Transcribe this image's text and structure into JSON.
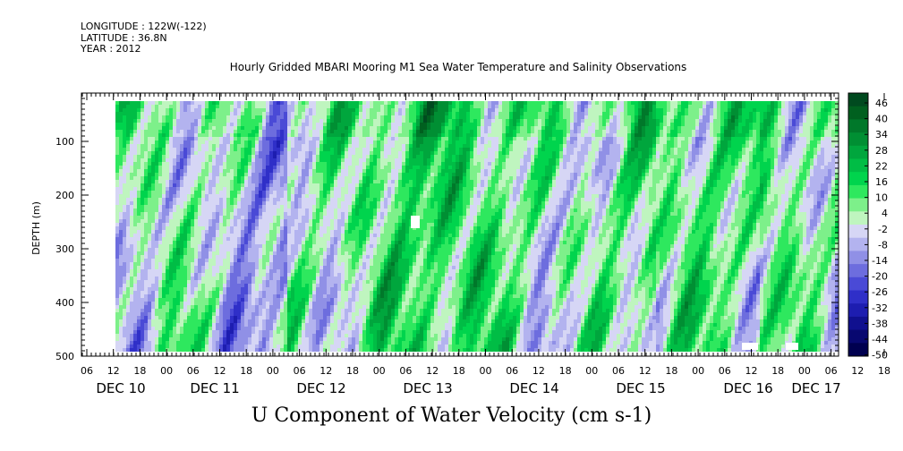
{
  "meta_lines": {
    "longitude": "LONGITUDE : 122W(-122)",
    "latitude": "LATITUDE : 36.8N",
    "year": "YEAR : 2012"
  },
  "chart_data": {
    "type": "heatmap",
    "title": "Hourly Gridded MBARI Mooring M1 Sea Water Temperature and Salinity Observations",
    "xlabel": "U Component of Water Velocity (cm s-1)",
    "ylabel": "DEPTH (m)",
    "ylim": [
      500,
      10
    ],
    "y_ticks": [
      100,
      200,
      300,
      400,
      500
    ],
    "x_hour_labels": [
      "06",
      "12",
      "18",
      "00",
      "06",
      "12",
      "18",
      "00",
      "06",
      "12",
      "18",
      "00",
      "06",
      "12",
      "18",
      "00",
      "06",
      "12",
      "18",
      "00",
      "06",
      "12",
      "18",
      "00",
      "06",
      "12",
      "18",
      "00",
      "06",
      "12",
      "18",
      "00",
      "06"
    ],
    "x_day_labels": [
      "DEC 10",
      "DEC 11",
      "DEC 12",
      "DEC 13",
      "DEC 14",
      "DEC 15",
      "DEC 16",
      "DEC 17"
    ],
    "colorbar": {
      "levels": [
        "46",
        "40",
        "34",
        "28",
        "22",
        "16",
        "10",
        "4",
        "-2",
        "-8",
        "-14",
        "-20",
        "-26",
        "-32",
        "-38",
        "-44",
        "-50"
      ],
      "colors_top_to_bottom": [
        "#004a1f",
        "#00601f",
        "#00782a",
        "#008f33",
        "#00a63d",
        "#00bd45",
        "#00d44d",
        "#2ee85e",
        "#7df08a",
        "#bff5bf",
        "#d6d6f5",
        "#b3b3ef",
        "#9090e6",
        "#6d6dde",
        "#4a4ad6",
        "#2f2fc8",
        "#1d1db0",
        "#10108f",
        "#080870",
        "#000050"
      ]
    },
    "series_description": "U velocity field by depth (≈25–490 m) and time (Dec 10 12:00 – Dec 17 06:00); alternating positive (green, eastward) and negative (blue/lavender) bands with magnitudes mostly between -20 and 28 cm/s"
  }
}
